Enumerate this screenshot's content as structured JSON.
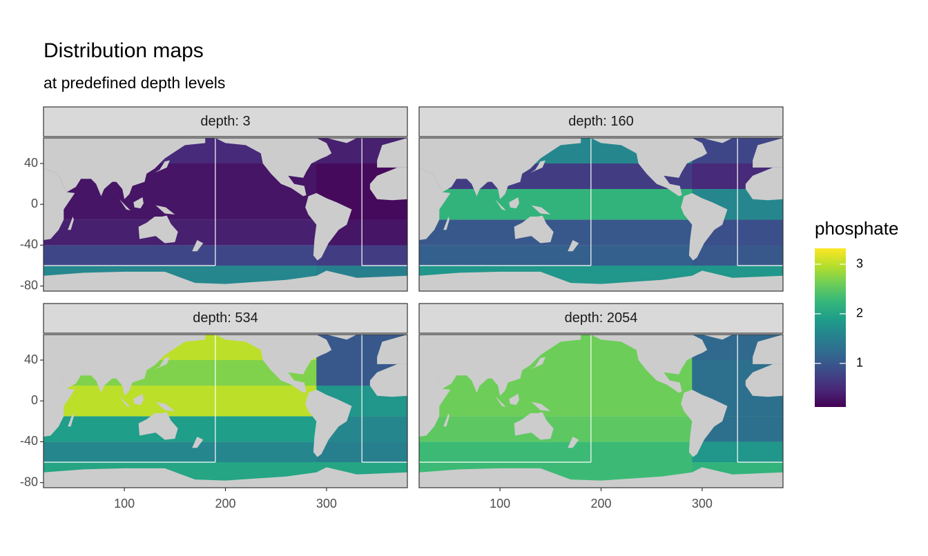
{
  "chart_data": {
    "type": "map",
    "title": "Distribution maps",
    "subtitle": "at predefined depth levels",
    "xlim": [
      20,
      380
    ],
    "ylim": [
      -85,
      65
    ],
    "xticks": [
      100,
      200,
      300
    ],
    "yticks": [
      -80,
      -40,
      0,
      40
    ],
    "lat_breaks": [
      -85,
      -60,
      -40,
      -15,
      15,
      40,
      65
    ],
    "atlantic_xlim": [
      290,
      380
    ],
    "basin_boundary": {
      "x": [
        190,
        335
      ],
      "y": -60
    },
    "panels": [
      {
        "label": "depth: 3",
        "values": [
          1.6,
          0.8,
          0.4,
          0.3,
          0.3,
          0.5
        ],
        "atlantic_values": [
          1.5,
          0.7,
          0.3,
          0.2,
          0.2,
          0.4
        ]
      },
      {
        "label": "depth: 160",
        "values": [
          1.8,
          1.1,
          1.0,
          2.2,
          0.7,
          1.6
        ],
        "atlantic_values": [
          1.8,
          1.0,
          0.9,
          1.6,
          0.5,
          0.8
        ]
      },
      {
        "label": "depth: 534",
        "values": [
          2.0,
          1.6,
          1.9,
          3.0,
          2.7,
          3.0
        ],
        "atlantic_values": [
          2.0,
          1.5,
          1.6,
          1.8,
          1.0,
          1.0
        ]
      },
      {
        "label": "depth: 2054",
        "values": [
          2.3,
          2.3,
          2.5,
          2.6,
          2.6,
          2.6
        ],
        "atlantic_values": [
          2.2,
          1.8,
          1.3,
          1.3,
          1.3,
          1.2
        ]
      }
    ],
    "legend": {
      "title": "phosphate",
      "lim": [
        0.12,
        3.32
      ],
      "ticks": [
        1,
        2,
        3
      ]
    }
  }
}
